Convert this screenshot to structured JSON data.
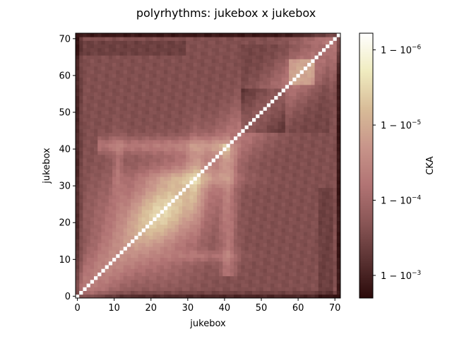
{
  "chart_data": {
    "type": "heatmap",
    "title": "polyrhythms: jukebox x jukebox",
    "xlabel": "jukebox",
    "ylabel": "jukebox",
    "n": 72,
    "x_ticks": [
      0,
      10,
      20,
      30,
      40,
      50,
      60,
      70
    ],
    "y_ticks": [
      0,
      10,
      20,
      30,
      40,
      50,
      60,
      70
    ],
    "xlim": [
      -0.5,
      71.5
    ],
    "ylim": [
      -0.5,
      71.5
    ],
    "colorbar": {
      "label": "CKA",
      "scale": "log (1 - CKA)",
      "min_one_minus_cka": 6e-07,
      "max_one_minus_cka": 0.002,
      "ticks": [
        {
          "label_base": "1 − 10",
          "label_exp": "−6",
          "one_minus_cka": 1e-06
        },
        {
          "label_base": "1 − 10",
          "label_exp": "−5",
          "one_minus_cka": 1e-05
        },
        {
          "label_base": "1 − 10",
          "label_exp": "−4",
          "one_minus_cka": 0.0001
        },
        {
          "label_base": "1 − 10",
          "label_exp": "−3",
          "one_minus_cka": 0.001
        }
      ],
      "colormap": [
        "#2b0a0a",
        "#5a3232",
        "#8a5656",
        "#b27474",
        "#c8958a",
        "#d8bc98",
        "#f0ecc0",
        "#ffffff"
      ]
    },
    "diagonal_cka": 1.0
  }
}
